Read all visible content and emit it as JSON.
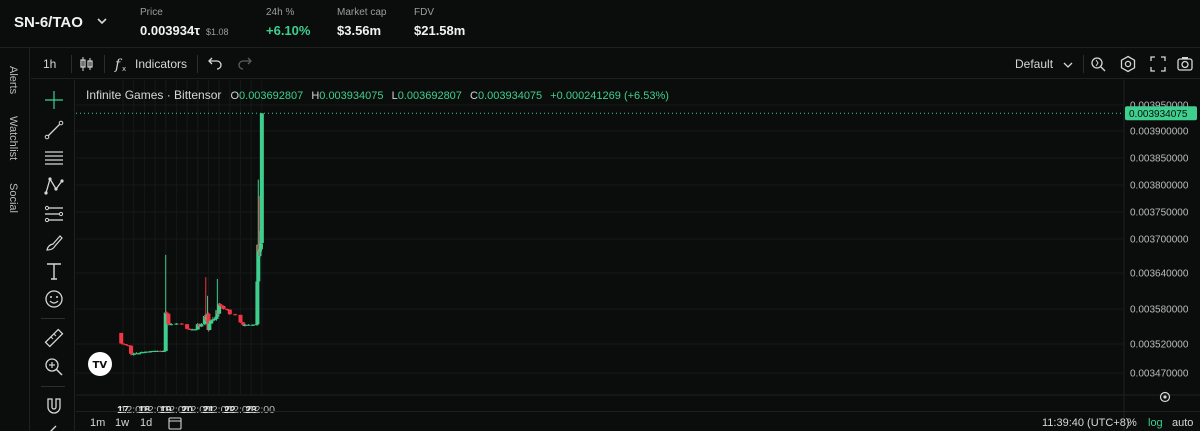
{
  "header": {
    "pair": "SN-6/TAO",
    "price_label": "Price",
    "price_value": "0.003934τ",
    "price_usd": "$1.08",
    "change_label": "24h %",
    "change_value": "+6.10%",
    "mcap_label": "Market cap",
    "mcap_value": "$3.56m",
    "fdv_label": "FDV",
    "fdv_value": "$21.58m"
  },
  "side_tabs": [
    "Alerts",
    "Watchlist",
    "Social"
  ],
  "toolbar": {
    "interval": "1h",
    "indicators": "Indicators",
    "layout": "Default"
  },
  "legend": {
    "name": "Infinite Games · Bittensor",
    "o_key": "O",
    "o": "0.003692807",
    "h_key": "H",
    "h": "0.003934075",
    "l_key": "L",
    "l": "0.003692807",
    "c_key": "C",
    "c": "0.003934075",
    "change": "+0.000241269 (+6.53%)"
  },
  "timeframes": [
    "1m",
    "1w",
    "1d"
  ],
  "bottom": {
    "clock": "11:39:40 (UTC+8)",
    "pct": "%",
    "log": "log",
    "auto": "auto"
  },
  "colors": {
    "up": "#3ecf8e",
    "down": "#f23645",
    "bg": "#0b0d0c",
    "text": "#d6d6d6"
  },
  "chart_data": {
    "type": "candlestick",
    "price_axis_ticks": [
      "0.003950000",
      "0.003900000",
      "0.003850000",
      "0.003800000",
      "0.003750000",
      "0.003700000",
      "0.003640000",
      "0.003580000",
      "0.003520000",
      "0.003470000"
    ],
    "price_axis_tick_values": [
      0.00395,
      0.0039,
      0.00385,
      0.0038,
      0.00375,
      0.0037,
      0.00364,
      0.00358,
      0.00352,
      0.00347
    ],
    "time_axis_ticks": [
      "17",
      "12:00",
      "18",
      "12:00",
      "19",
      "12:00",
      "20",
      "12:00",
      "21",
      "12:00",
      "22",
      "12:00",
      "23",
      "12:00"
    ],
    "time_axis_tick_hours": [
      0,
      12,
      24,
      36,
      48,
      60,
      72,
      84,
      96,
      108,
      120,
      132,
      144,
      156
    ],
    "last_price": "0.003934075",
    "last_price_value": 0.003934075,
    "candles": [
      {
        "t": -2,
        "o": 0.003539,
        "h": 0.003539,
        "l": 0.00352,
        "c": 0.003521
      },
      {
        "t": 0,
        "o": 0.003521,
        "h": 0.003521,
        "l": 0.00352,
        "c": 0.00352
      },
      {
        "t": 3,
        "o": 0.00352,
        "h": 0.00352,
        "l": 0.003518,
        "c": 0.003518
      },
      {
        "t": 6,
        "o": 0.003518,
        "h": 0.003518,
        "l": 0.003516,
        "c": 0.003517
      },
      {
        "t": 9,
        "o": 0.003517,
        "h": 0.003518,
        "l": 0.0035,
        "c": 0.003503
      },
      {
        "t": 12,
        "o": 0.003503,
        "h": 0.003505,
        "l": 0.0035,
        "c": 0.003503
      },
      {
        "t": 15,
        "o": 0.003503,
        "h": 0.003506,
        "l": 0.003503,
        "c": 0.003504
      },
      {
        "t": 18,
        "o": 0.003504,
        "h": 0.003505,
        "l": 0.003502,
        "c": 0.003504
      },
      {
        "t": 21,
        "o": 0.003504,
        "h": 0.003507,
        "l": 0.003504,
        "c": 0.003506
      },
      {
        "t": 24,
        "o": 0.003506,
        "h": 0.003507,
        "l": 0.003505,
        "c": 0.003506
      },
      {
        "t": 27,
        "o": 0.003506,
        "h": 0.003507,
        "l": 0.003505,
        "c": 0.003507
      },
      {
        "t": 30,
        "o": 0.003507,
        "h": 0.003508,
        "l": 0.003506,
        "c": 0.003507
      },
      {
        "t": 33,
        "o": 0.003507,
        "h": 0.003508,
        "l": 0.003506,
        "c": 0.003508
      },
      {
        "t": 36,
        "o": 0.003508,
        "h": 0.003509,
        "l": 0.003507,
        "c": 0.003508
      },
      {
        "t": 39,
        "o": 0.003508,
        "h": 0.003509,
        "l": 0.003507,
        "c": 0.003508
      },
      {
        "t": 42,
        "o": 0.003508,
        "h": 0.003509,
        "l": 0.003506,
        "c": 0.003507
      },
      {
        "t": 45,
        "o": 0.003507,
        "h": 0.003509,
        "l": 0.003506,
        "c": 0.003508
      },
      {
        "t": 48,
        "o": 0.003508,
        "h": 0.003672,
        "l": 0.003506,
        "c": 0.003574
      },
      {
        "t": 49,
        "o": 0.003574,
        "h": 0.003576,
        "l": 0.003571,
        "c": 0.003572
      },
      {
        "t": 51,
        "o": 0.003572,
        "h": 0.003572,
        "l": 0.003552,
        "c": 0.003554
      },
      {
        "t": 54,
        "o": 0.003554,
        "h": 0.003556,
        "l": 0.003552,
        "c": 0.003554
      },
      {
        "t": 60,
        "o": 0.003554,
        "h": 0.003556,
        "l": 0.003553,
        "c": 0.003555
      },
      {
        "t": 66,
        "o": 0.003555,
        "h": 0.003556,
        "l": 0.003553,
        "c": 0.003554
      },
      {
        "t": 72,
        "o": 0.003554,
        "h": 0.003554,
        "l": 0.003545,
        "c": 0.003546
      },
      {
        "t": 75,
        "o": 0.003546,
        "h": 0.003547,
        "l": 0.003544,
        "c": 0.003545
      },
      {
        "t": 78,
        "o": 0.003545,
        "h": 0.003546,
        "l": 0.003544,
        "c": 0.003545
      },
      {
        "t": 81,
        "o": 0.003545,
        "h": 0.003546,
        "l": 0.003544,
        "c": 0.003545
      },
      {
        "t": 84,
        "o": 0.003545,
        "h": 0.003556,
        "l": 0.003544,
        "c": 0.003554
      },
      {
        "t": 86,
        "o": 0.003554,
        "h": 0.003555,
        "l": 0.003548,
        "c": 0.00355
      },
      {
        "t": 88,
        "o": 0.00355,
        "h": 0.003556,
        "l": 0.003549,
        "c": 0.003554
      },
      {
        "t": 92,
        "o": 0.003554,
        "h": 0.00357,
        "l": 0.003552,
        "c": 0.003568
      },
      {
        "t": 93,
        "o": 0.003568,
        "h": 0.003633,
        "l": 0.00356,
        "c": 0.003562
      },
      {
        "t": 94,
        "o": 0.003562,
        "h": 0.00357,
        "l": 0.003558,
        "c": 0.003566
      },
      {
        "t": 95,
        "o": 0.003566,
        "h": 0.003602,
        "l": 0.003562,
        "c": 0.003572
      },
      {
        "t": 96,
        "o": 0.003572,
        "h": 0.003574,
        "l": 0.003541,
        "c": 0.003544
      },
      {
        "t": 97,
        "o": 0.003544,
        "h": 0.00356,
        "l": 0.003543,
        "c": 0.003555
      },
      {
        "t": 99,
        "o": 0.003555,
        "h": 0.003562,
        "l": 0.003554,
        "c": 0.00356
      },
      {
        "t": 101,
        "o": 0.00356,
        "h": 0.003566,
        "l": 0.003557,
        "c": 0.003562
      },
      {
        "t": 103,
        "o": 0.003562,
        "h": 0.003565,
        "l": 0.00356,
        "c": 0.003563
      },
      {
        "t": 105,
        "o": 0.003563,
        "h": 0.003572,
        "l": 0.00356,
        "c": 0.003567
      },
      {
        "t": 106,
        "o": 0.003567,
        "h": 0.00363,
        "l": 0.003566,
        "c": 0.003578
      },
      {
        "t": 107,
        "o": 0.003578,
        "h": 0.00358,
        "l": 0.00357,
        "c": 0.003572
      },
      {
        "t": 108,
        "o": 0.003572,
        "h": 0.00359,
        "l": 0.003571,
        "c": 0.003588
      },
      {
        "t": 109,
        "o": 0.003588,
        "h": 0.00359,
        "l": 0.003584,
        "c": 0.003586
      },
      {
        "t": 111,
        "o": 0.003586,
        "h": 0.003588,
        "l": 0.003582,
        "c": 0.003585
      },
      {
        "t": 113,
        "o": 0.003585,
        "h": 0.003586,
        "l": 0.003579,
        "c": 0.00358
      },
      {
        "t": 117,
        "o": 0.00358,
        "h": 0.003581,
        "l": 0.003577,
        "c": 0.003579
      },
      {
        "t": 120,
        "o": 0.003579,
        "h": 0.003579,
        "l": 0.00357,
        "c": 0.003571
      },
      {
        "t": 126,
        "o": 0.003571,
        "h": 0.003572,
        "l": 0.003569,
        "c": 0.00357
      },
      {
        "t": 132,
        "o": 0.00357,
        "h": 0.00357,
        "l": 0.003556,
        "c": 0.003557
      },
      {
        "t": 135,
        "o": 0.003557,
        "h": 0.003558,
        "l": 0.003552,
        "c": 0.003553
      },
      {
        "t": 136,
        "o": 0.003553,
        "h": 0.003554,
        "l": 0.003551,
        "c": 0.003552
      },
      {
        "t": 137,
        "o": 0.003552,
        "h": 0.003554,
        "l": 0.00355,
        "c": 0.003553
      },
      {
        "t": 141,
        "o": 0.003553,
        "h": 0.003554,
        "l": 0.003552,
        "c": 0.003553
      },
      {
        "t": 146,
        "o": 0.003553,
        "h": 0.003554,
        "l": 0.003551,
        "c": 0.003553
      },
      {
        "t": 150,
        "o": 0.003553,
        "h": 0.003556,
        "l": 0.003552,
        "c": 0.003554
      },
      {
        "t": 151,
        "o": 0.003554,
        "h": 0.00363,
        "l": 0.003552,
        "c": 0.003626
      },
      {
        "t": 152,
        "o": 0.003626,
        "h": 0.00381,
        "l": 0.00362,
        "c": 0.00369
      },
      {
        "t": 153,
        "o": 0.00369,
        "h": 0.00378,
        "l": 0.00367,
        "c": 0.003678
      },
      {
        "t": 154,
        "o": 0.003678,
        "h": 0.003715,
        "l": 0.003668,
        "c": 0.003682
      },
      {
        "t": 155,
        "o": 0.003682,
        "h": 0.00379,
        "l": 0.00367,
        "c": 0.003692
      },
      {
        "t": 156,
        "o": 0.003692807,
        "h": 0.003934075,
        "l": 0.003692807,
        "c": 0.003934075
      }
    ]
  }
}
